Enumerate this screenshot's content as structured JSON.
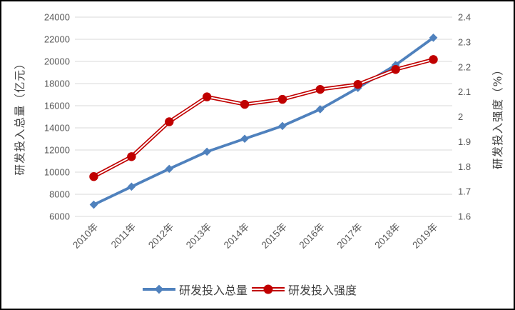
{
  "chart_data": {
    "type": "line",
    "title": "",
    "categories": [
      "2010年",
      "2011年",
      "2012年",
      "2013年",
      "2014年",
      "2015年",
      "2016年",
      "2017年",
      "2018年",
      "2019年"
    ],
    "series": [
      {
        "name": "研发投入总量",
        "axis": "left",
        "marker": "diamond",
        "color": "#4F81BD",
        "values": [
          7062.6,
          8687.0,
          10298.4,
          11846.6,
          13015.6,
          14169.9,
          15676.7,
          17606.1,
          19677.9,
          22143.6
        ]
      },
      {
        "name": "研发投入强度",
        "axis": "right",
        "marker": "circle",
        "line_style": "double",
        "color": "#C00000",
        "values": [
          1.76,
          1.84,
          1.98,
          2.08,
          2.05,
          2.07,
          2.11,
          2.13,
          2.19,
          2.23
        ]
      }
    ],
    "left_axis": {
      "title": "研发投入总量（亿元）",
      "min": 6000,
      "max": 24000,
      "step": 2000,
      "tick_labels": [
        "24000",
        "22000",
        "20000",
        "18000",
        "16000",
        "14000",
        "12000",
        "10000",
        "8000",
        "6000"
      ]
    },
    "right_axis": {
      "title": "研发投入强度（%）",
      "min": 1.6,
      "max": 2.4,
      "step": 0.1,
      "tick_labels": [
        "2.4",
        "2.3",
        "2.2",
        "2.1",
        "2",
        "1.9",
        "1.8",
        "1.7",
        "1.6"
      ]
    },
    "grid": true,
    "legend_position": "bottom",
    "colors": {
      "grid": "#D9D9D9",
      "tick_text": "#595959",
      "label_text": "#404040",
      "background": "#FFFFFF",
      "frame_border": "#000000"
    }
  }
}
